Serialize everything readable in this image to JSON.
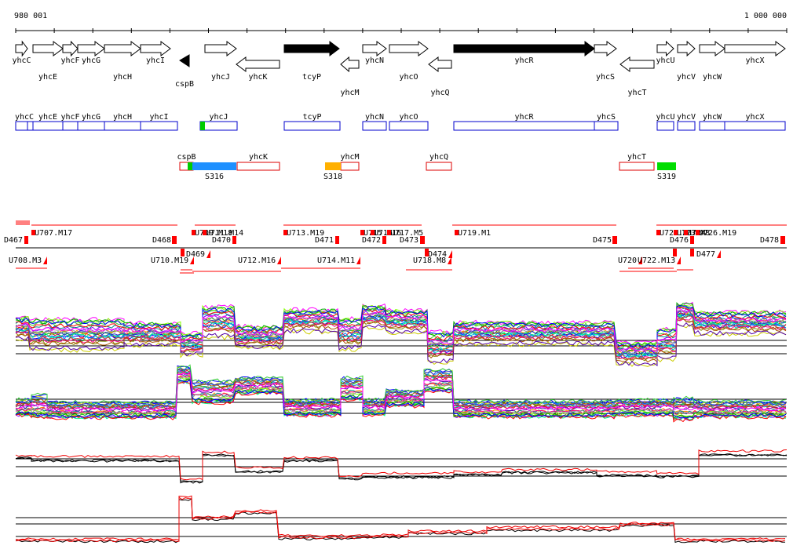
{
  "ruler": {
    "start_label": "980 001",
    "end_label": "1 000 000"
  },
  "colors": {
    "gene_outline": "#000000",
    "gene_filled": "#000000",
    "cds_box": "#0000cc",
    "antisense_box": "#dd0000",
    "segment": "#ff0000",
    "profile_mean": "#000000",
    "profile_alt": "#ee0000",
    "s316": "#1e90ff",
    "s318": "#ffb000",
    "s319": "#00dd00"
  },
  "genes": [
    {
      "name": "yhcC",
      "strand": "+",
      "filled": false
    },
    {
      "name": "yhcE",
      "strand": "+",
      "filled": false
    },
    {
      "name": "yhcF",
      "strand": "+",
      "filled": false
    },
    {
      "name": "yhcG",
      "strand": "+",
      "filled": false
    },
    {
      "name": "yhcH",
      "strand": "+",
      "filled": false
    },
    {
      "name": "yhcI",
      "strand": "+",
      "filled": false
    },
    {
      "name": "cspB",
      "strand": "-",
      "filled": true
    },
    {
      "name": "yhcJ",
      "strand": "+",
      "filled": false
    },
    {
      "name": "yhcK",
      "strand": "-",
      "filled": false
    },
    {
      "name": "tcyP",
      "strand": "+",
      "filled": true
    },
    {
      "name": "yhcM",
      "strand": "-",
      "filled": false
    },
    {
      "name": "yhcN",
      "strand": "+",
      "filled": false
    },
    {
      "name": "yhcO",
      "strand": "+",
      "filled": false
    },
    {
      "name": "yhcQ",
      "strand": "-",
      "filled": false
    },
    {
      "name": "yhcR",
      "strand": "+",
      "filled": true
    },
    {
      "name": "yhcS",
      "strand": "+",
      "filled": false
    },
    {
      "name": "yhcT",
      "strand": "-",
      "filled": false
    },
    {
      "name": "yhcU",
      "strand": "+",
      "filled": false
    },
    {
      "name": "yhcV",
      "strand": "+",
      "filled": false
    },
    {
      "name": "yhcW",
      "strand": "+",
      "filled": false
    },
    {
      "name": "yhcX",
      "strand": "+",
      "filled": false
    }
  ],
  "forward_boxes": [
    "yhcC",
    "yhcE",
    "yhcF",
    "yhcG",
    "yhcH",
    "yhcI",
    "yhcJ",
    "tcyP",
    "yhcN",
    "yhcO",
    "yhcR",
    "yhcS",
    "yhcU",
    "yhcV",
    "yhcW",
    "yhcX"
  ],
  "reverse_boxes": [
    "cspB",
    "yhcK",
    "yhcM",
    "yhcQ",
    "yhcT"
  ],
  "segments": [
    {
      "name": "S316"
    },
    {
      "name": "S318"
    },
    {
      "name": "S319"
    }
  ],
  "upper_labels": [
    "U707.M17",
    "D468",
    "U709.M18",
    "U711.M14",
    "D470",
    "U713.M19",
    "D471",
    "U715.M16",
    "U716",
    "U717.M5",
    "D472",
    "D473",
    "U719.M1",
    "D475",
    "U721.M1",
    "U723.M8",
    "U724",
    "D476",
    "U726.M19",
    "D478"
  ],
  "lower_labels": [
    "D467",
    "U708.M3",
    "U710.M19",
    "D469",
    "U712.M16",
    "U714.M11",
    "U718.M8",
    "D474",
    "U720",
    "U722.M13",
    "D477"
  ],
  "profile_panels": [
    {
      "name": "condition-profiles-1",
      "kind": "multi"
    },
    {
      "name": "condition-profiles-2",
      "kind": "multi"
    },
    {
      "name": "mean-profile-1",
      "kind": "pair"
    },
    {
      "name": "mean-profile-2",
      "kind": "pair"
    }
  ]
}
